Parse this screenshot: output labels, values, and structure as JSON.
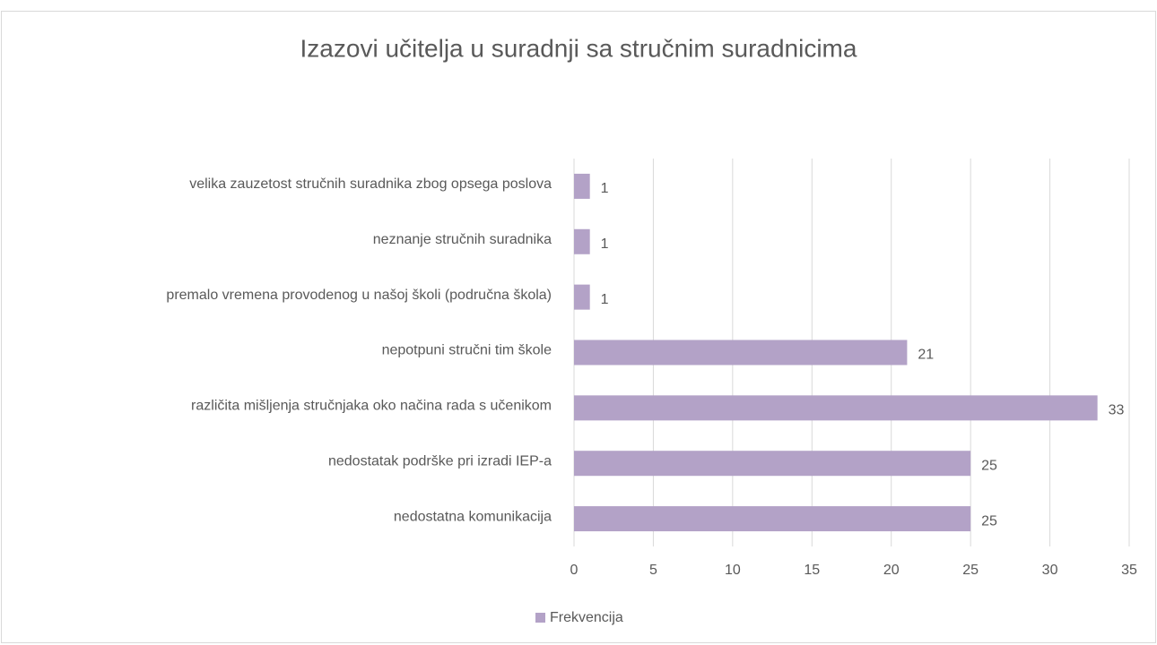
{
  "chart_data": {
    "type": "bar",
    "orientation": "horizontal",
    "title": "Izazovi učitelja u suradnji sa stručnim suradnicima",
    "categories": [
      "nedostatna komunikacija",
      "nedostatak podrške pri izradi IEP-a",
      "različita mišljenja stručnjaka oko načina rada s učenikom",
      "nepotpuni stručni tim škole",
      "premalo vremena provodenog u našoj školi (područna škola)",
      "neznanje stručnih suradnika",
      "velika zauzetost stručnih suradnika zbog opsega poslova"
    ],
    "series": [
      {
        "name": "Frekvencija",
        "color": "#b3a2c7",
        "values": [
          25,
          25,
          33,
          21,
          1,
          1,
          1
        ]
      }
    ],
    "xlim": [
      0,
      35
    ],
    "xticks": [
      0,
      5,
      10,
      15,
      20,
      25,
      30,
      35
    ],
    "grid": true,
    "legend": "bottom"
  }
}
